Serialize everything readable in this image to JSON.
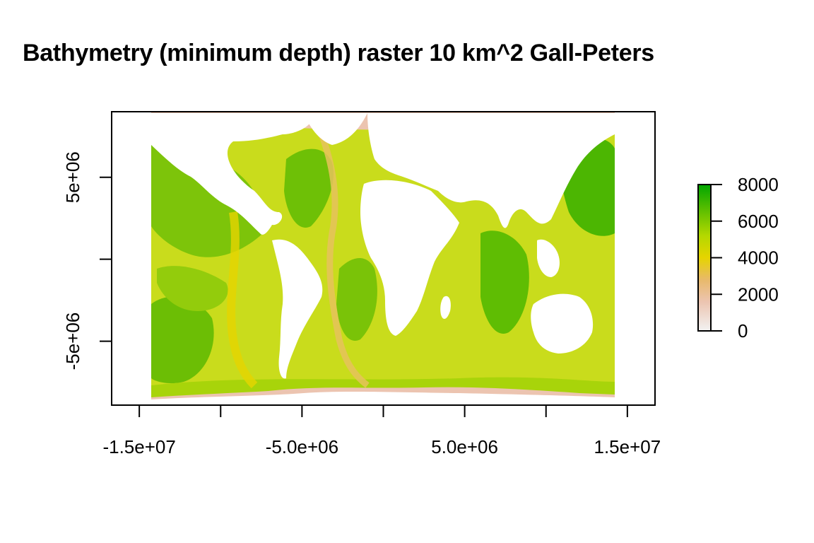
{
  "title": "Bathymetry (minimum depth) raster 10 km^2 Gall-Peters",
  "chart_data": {
    "type": "heatmap",
    "title": "Bathymetry (minimum depth) raster 10 km^2 Gall-Peters",
    "xlabel": "",
    "ylabel": "",
    "x_ticks": [
      {
        "value": -15000000,
        "label": "-1.5e+07"
      },
      {
        "value": -10000000,
        "label": ""
      },
      {
        "value": -5000000,
        "label": "-5.0e+06"
      },
      {
        "value": 0,
        "label": ""
      },
      {
        "value": 5000000,
        "label": "5.0e+06"
      },
      {
        "value": 10000000,
        "label": ""
      },
      {
        "value": 15000000,
        "label": "1.5e+07"
      }
    ],
    "y_ticks": [
      {
        "value": 5000000,
        "label": "5e+06"
      },
      {
        "value": 0,
        "label": ""
      },
      {
        "value": -5000000,
        "label": "-5e+06"
      }
    ],
    "xlim": [
      -16700000,
      16700000
    ],
    "ylim": [
      -8900000,
      9000000
    ],
    "raster_extent": {
      "xmin": -14580000,
      "xmax": 13880000,
      "ymin": -8790000,
      "ymax": 8790000
    },
    "legend": {
      "position": "right",
      "min": 0,
      "max": 8000,
      "ticks": [
        {
          "value": 8000,
          "label": "8000"
        },
        {
          "value": 6000,
          "label": "6000"
        },
        {
          "value": 4000,
          "label": "4000"
        },
        {
          "value": 2000,
          "label": "2000"
        },
        {
          "value": 0,
          "label": "0"
        }
      ],
      "colors": [
        "#f2f2f2",
        "#ecc4b0",
        "#e8b96a",
        "#e6d400",
        "#b4d800",
        "#5fbf00",
        "#00a600"
      ]
    },
    "land_color": "#ffffff"
  }
}
